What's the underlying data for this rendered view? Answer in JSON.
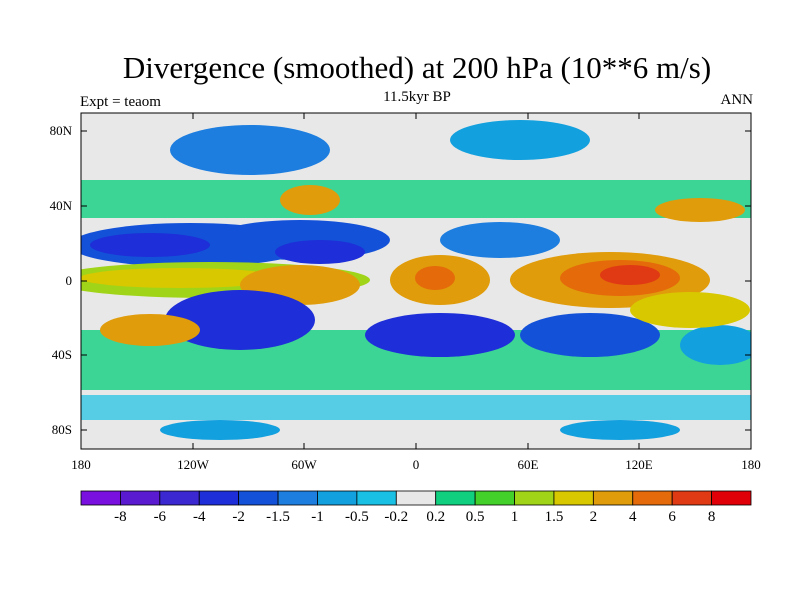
{
  "title": "Divergence (smoothed) at 200 hPa (10**6 m/s)",
  "subtitle": "11.5kyr BP",
  "left_label": "Expt = teaom",
  "right_label": "ANN",
  "lat_ticks": [
    "80N",
    "40N",
    "0",
    "40S",
    "80S"
  ],
  "lon_ticks": [
    "180",
    "120W",
    "60W",
    "0",
    "60E",
    "120E",
    "180"
  ],
  "colorbar": {
    "labels": [
      "-8",
      "-6",
      "-4",
      "-2",
      "-1.5",
      "-1",
      "-0.5",
      "-0.2",
      "0.2",
      "0.5",
      "1",
      "1.5",
      "2",
      "4",
      "6",
      "8"
    ],
    "colors": [
      "#7a10e0",
      "#5a1ad0",
      "#3c28d0",
      "#1e2ed8",
      "#1352d8",
      "#1d7ee0",
      "#12a0de",
      "#19c0e4",
      "#e8e8e8",
      "#10d080",
      "#44d02a",
      "#a0d418",
      "#d8c800",
      "#e09c0a",
      "#e46a0a",
      "#e03a14",
      "#e00008"
    ]
  }
}
